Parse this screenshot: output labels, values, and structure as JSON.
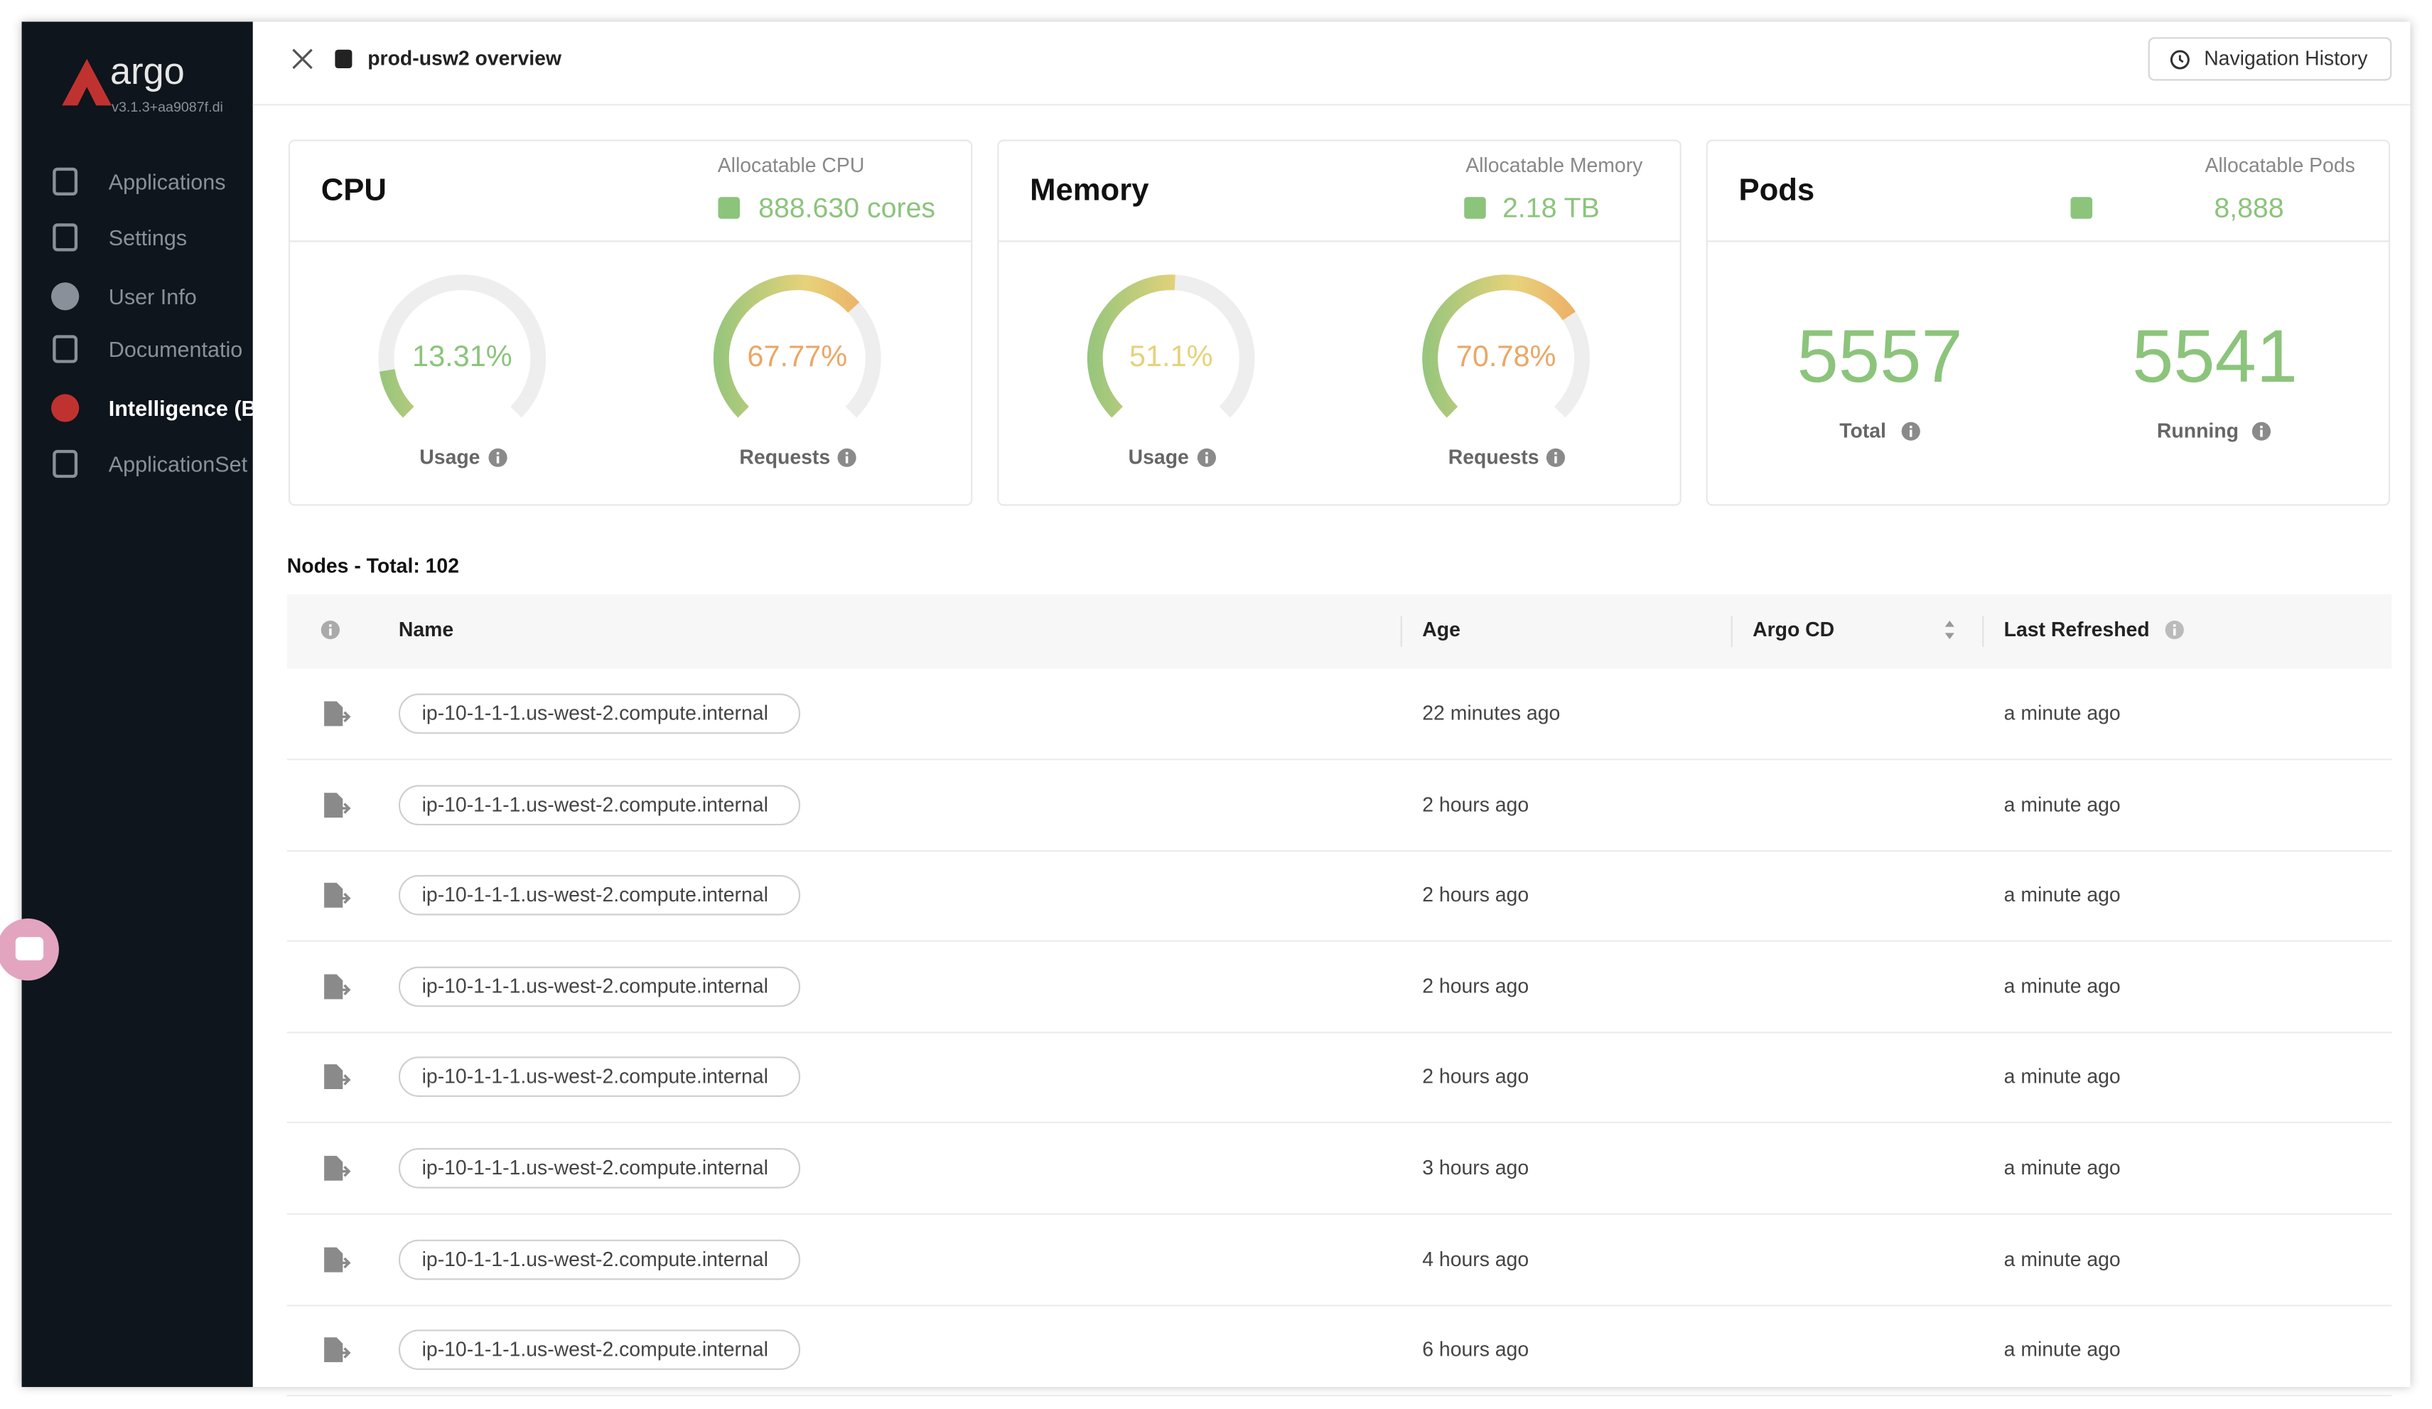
{
  "sidebar": {
    "logo": "argo",
    "version": "v3.1.3+aa9087f.di",
    "items": [
      "Applications",
      "Settings",
      "User Info",
      "Documentatio",
      "Intelligence (B",
      "ApplicationSet"
    ]
  },
  "header": {
    "title": "prod-usw2 overview",
    "button": "Navigation History"
  },
  "cards": [
    {
      "title": "CPU",
      "allocatable_label": "Allocatable CPU",
      "allocatable_value": "888.630 cores",
      "gauges": [
        {
          "value": 13.31,
          "value_label": "13.31%",
          "label": "Usage"
        },
        {
          "value": 67.77,
          "value_label": "67.77%",
          "label": "Requests"
        }
      ]
    },
    {
      "title": "Memory",
      "allocatable_label": "Allocatable Memory",
      "allocatable_value": "2.18 TB",
      "gauges": [
        {
          "value": 51.1,
          "value_label": "51.1%",
          "label": "Usage"
        },
        {
          "value": 70.78,
          "value_label": "70.78%",
          "label": "Requests"
        }
      ]
    },
    {
      "title": "Pods",
      "allocatable_label": "Allocatable Pods",
      "allocatable_value": "8,888",
      "stats": [
        {
          "value": "5557",
          "label": "Total"
        },
        {
          "value": "5541",
          "label": "Running"
        }
      ]
    }
  ],
  "table": {
    "caption": "Nodes - Total: 102",
    "columns": [
      "Name",
      "Age",
      "Argo CD",
      "Last Refreshed"
    ],
    "rows": [
      {
        "name": "ip-10-1-1-1.us-west-2.compute.internal",
        "age": "22 minutes ago",
        "last_refreshed": "a minute ago"
      },
      {
        "name": "ip-10-1-1-1.us-west-2.compute.internal",
        "age": "2 hours ago",
        "last_refreshed": "a minute ago"
      },
      {
        "name": "ip-10-1-1-1.us-west-2.compute.internal",
        "age": "2 hours ago",
        "last_refreshed": "a minute ago"
      },
      {
        "name": "ip-10-1-1-1.us-west-2.compute.internal",
        "age": "2 hours ago",
        "last_refreshed": "a minute ago"
      },
      {
        "name": "ip-10-1-1-1.us-west-2.compute.internal",
        "age": "2 hours ago",
        "last_refreshed": "a minute ago"
      },
      {
        "name": "ip-10-1-1-1.us-west-2.compute.internal",
        "age": "3 hours ago",
        "last_refreshed": "a minute ago"
      },
      {
        "name": "ip-10-1-1-1.us-west-2.compute.internal",
        "age": "4 hours ago",
        "last_refreshed": "a minute ago"
      },
      {
        "name": "ip-10-1-1-1.us-west-2.compute.internal",
        "age": "6 hours ago",
        "last_refreshed": "a minute ago"
      }
    ]
  }
}
